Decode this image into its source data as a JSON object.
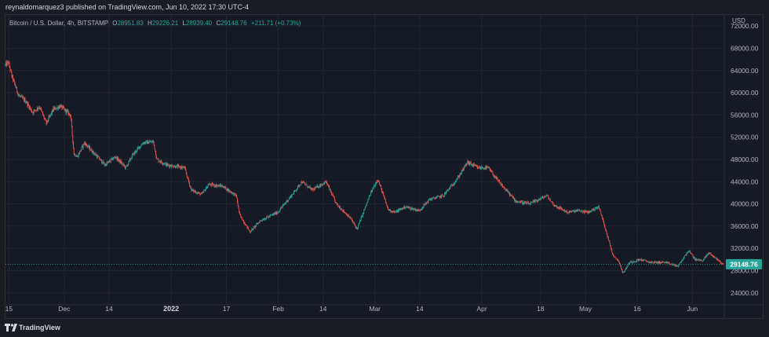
{
  "header": {
    "published_line": "reynaldomarquez3 published on TradingView.com, Jun 10, 2022 17:30 UTC-4"
  },
  "legend": {
    "symbol": "Bitcoin / U.S. Dollar, 4h, BITSTAMP",
    "open_key": "O",
    "open": "28951.83",
    "high_key": "H",
    "high": "29226.21",
    "low_key": "L",
    "low": "28939.40",
    "close_key": "C",
    "close": "29148.76",
    "change": "+211.71 (+0.73%)"
  },
  "price_axis": {
    "currency": "USD",
    "last_price_label": "29148.76"
  },
  "footer": {
    "brand": "TradingView"
  },
  "colors": {
    "background": "#161a25",
    "up": "#26a69a",
    "down": "#ef5350",
    "grid": "#232733",
    "axis_text": "#b2b5be",
    "price_tag": "#26a69a"
  },
  "chart_data": {
    "type": "candlestick",
    "interval": "4h",
    "ylim": [
      22000,
      74000
    ],
    "y_ticks": [
      24000,
      28000,
      32000,
      36000,
      40000,
      44000,
      48000,
      52000,
      56000,
      60000,
      64000,
      68000,
      72000
    ],
    "y_tick_labels": [
      "24000.00",
      "28000.00",
      "32000.00",
      "36000.00",
      "40000.00",
      "44000.00",
      "48000.00",
      "52000.00",
      "56000.00",
      "60000.00",
      "64000.00",
      "68000.00",
      "72000.00"
    ],
    "x_range": [
      "2021-11-14",
      "2022-06-10"
    ],
    "x_ticks": [
      {
        "date": "2021-11-15",
        "label": "15"
      },
      {
        "date": "2021-12-01",
        "label": "Dec"
      },
      {
        "date": "2021-12-14",
        "label": "14"
      },
      {
        "date": "2022-01-01",
        "label": "2022"
      },
      {
        "date": "2022-01-17",
        "label": "17"
      },
      {
        "date": "2022-02-01",
        "label": "Feb"
      },
      {
        "date": "2022-02-14",
        "label": "14"
      },
      {
        "date": "2022-03-01",
        "label": "Mar"
      },
      {
        "date": "2022-03-14",
        "label": "14"
      },
      {
        "date": "2022-04-01",
        "label": "Apr"
      },
      {
        "date": "2022-04-18",
        "label": "18"
      },
      {
        "date": "2022-05-01",
        "label": "May"
      },
      {
        "date": "2022-05-16",
        "label": "16"
      },
      {
        "date": "2022-06-01",
        "label": "Jun"
      }
    ],
    "grid": true,
    "last_price": 29148.76,
    "series": [
      {
        "price_path": [
          [
            "2021-11-13",
            64300
          ],
          [
            "2021-11-15",
            65500
          ],
          [
            "2021-11-16",
            63000
          ],
          [
            "2021-11-18",
            59500
          ],
          [
            "2021-11-20",
            58500
          ],
          [
            "2021-11-22",
            56500
          ],
          [
            "2021-11-24",
            57500
          ],
          [
            "2021-11-26",
            54500
          ],
          [
            "2021-11-28",
            57000
          ],
          [
            "2021-11-30",
            57600
          ],
          [
            "2021-12-03",
            56000
          ],
          [
            "2021-12-04",
            49000
          ],
          [
            "2021-12-05",
            48500
          ],
          [
            "2021-12-07",
            51000
          ],
          [
            "2021-12-10",
            49000
          ],
          [
            "2021-12-13",
            47000
          ],
          [
            "2021-12-16",
            48500
          ],
          [
            "2021-12-19",
            46500
          ],
          [
            "2021-12-21",
            48800
          ],
          [
            "2021-12-24",
            51000
          ],
          [
            "2021-12-27",
            51200
          ],
          [
            "2021-12-28",
            48000
          ],
          [
            "2021-12-31",
            47000
          ],
          [
            "2022-01-05",
            46500
          ],
          [
            "2022-01-07",
            42500
          ],
          [
            "2022-01-10",
            41700
          ],
          [
            "2022-01-12",
            43500
          ],
          [
            "2022-01-16",
            43200
          ],
          [
            "2022-01-20",
            41500
          ],
          [
            "2022-01-21",
            38000
          ],
          [
            "2022-01-24",
            35000
          ],
          [
            "2022-01-27",
            37000
          ],
          [
            "2022-02-01",
            38500
          ],
          [
            "2022-02-05",
            41500
          ],
          [
            "2022-02-08",
            44000
          ],
          [
            "2022-02-11",
            42500
          ],
          [
            "2022-02-15",
            44000
          ],
          [
            "2022-02-18",
            40000
          ],
          [
            "2022-02-22",
            37500
          ],
          [
            "2022-02-24",
            35500
          ],
          [
            "2022-02-28",
            42000
          ],
          [
            "2022-03-02",
            44500
          ],
          [
            "2022-03-05",
            39000
          ],
          [
            "2022-03-07",
            38500
          ],
          [
            "2022-03-10",
            39500
          ],
          [
            "2022-03-14",
            38800
          ],
          [
            "2022-03-17",
            40800
          ],
          [
            "2022-03-21",
            41500
          ],
          [
            "2022-03-25",
            44500
          ],
          [
            "2022-03-28",
            47500
          ],
          [
            "2022-03-31",
            46500
          ],
          [
            "2022-04-03",
            46500
          ],
          [
            "2022-04-06",
            44000
          ],
          [
            "2022-04-11",
            40500
          ],
          [
            "2022-04-15",
            40000
          ],
          [
            "2022-04-20",
            41500
          ],
          [
            "2022-04-22",
            39800
          ],
          [
            "2022-04-26",
            38500
          ],
          [
            "2022-04-29",
            38800
          ],
          [
            "2022-05-02",
            38500
          ],
          [
            "2022-05-05",
            39500
          ],
          [
            "2022-05-07",
            35500
          ],
          [
            "2022-05-09",
            31000
          ],
          [
            "2022-05-11",
            29500
          ],
          [
            "2022-05-12",
            27500
          ],
          [
            "2022-05-14",
            29500
          ],
          [
            "2022-05-17",
            30000
          ],
          [
            "2022-05-20",
            29500
          ],
          [
            "2022-05-24",
            29500
          ],
          [
            "2022-05-28",
            28800
          ],
          [
            "2022-05-31",
            31600
          ],
          [
            "2022-06-02",
            30000
          ],
          [
            "2022-06-04",
            29800
          ],
          [
            "2022-06-06",
            31200
          ],
          [
            "2022-06-08",
            30200
          ],
          [
            "2022-06-10",
            29149
          ]
        ]
      }
    ]
  }
}
